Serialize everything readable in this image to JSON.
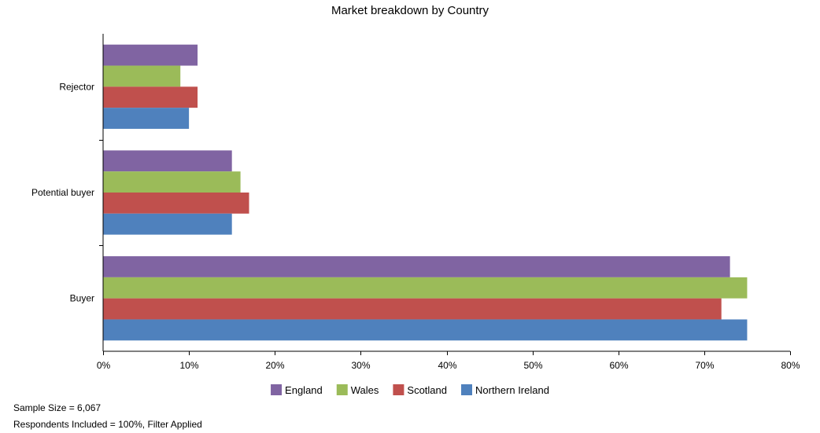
{
  "chart_data": {
    "type": "bar",
    "orientation": "horizontal",
    "title": "Market breakdown by Country",
    "xlabel": "",
    "ylabel": "",
    "categories": [
      "Rejector",
      "Potential buyer",
      "Buyer"
    ],
    "series": [
      {
        "name": "England",
        "color": "#8064a2",
        "values": [
          11,
          15,
          73
        ]
      },
      {
        "name": "Wales",
        "color": "#9bbb59",
        "values": [
          9,
          16,
          75
        ]
      },
      {
        "name": "Scotland",
        "color": "#c0504d",
        "values": [
          11,
          17,
          72
        ]
      },
      {
        "name": "Northern Ireland",
        "color": "#4f81bd",
        "values": [
          10,
          15,
          75
        ]
      }
    ],
    "xlim": [
      0,
      80
    ],
    "x_ticks": [
      0,
      10,
      20,
      30,
      40,
      50,
      60,
      70,
      80
    ],
    "tick_suffix": "%",
    "grid": false,
    "legend_position": "bottom"
  },
  "footer": {
    "sample_size": "Sample Size = 6,067",
    "respondents": "Respondents Included = 100%, Filter Applied"
  }
}
